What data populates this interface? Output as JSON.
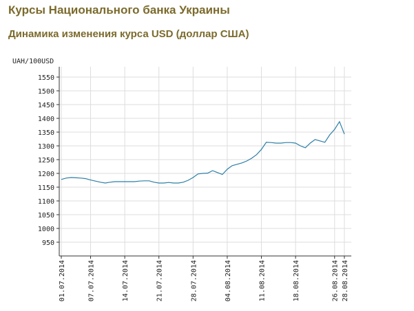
{
  "header": {
    "title": "Курсы Национального банка Украины",
    "subtitle": "Динамика изменения курса USD (доллар США)"
  },
  "chart_data": {
    "type": "line",
    "y_label": "UAH/100USD",
    "color": "#2b7ea6",
    "grid": true,
    "x": [
      "01.07.2014",
      "02.07.2014",
      "03.07.2014",
      "04.07.2014",
      "05.07.2014",
      "06.07.2014",
      "07.07.2014",
      "08.07.2014",
      "09.07.2014",
      "10.07.2014",
      "11.07.2014",
      "12.07.2014",
      "13.07.2014",
      "14.07.2014",
      "15.07.2014",
      "16.07.2014",
      "17.07.2014",
      "18.07.2014",
      "19.07.2014",
      "20.07.2014",
      "21.07.2014",
      "22.07.2014",
      "23.07.2014",
      "24.07.2014",
      "25.07.2014",
      "26.07.2014",
      "27.07.2014",
      "28.07.2014",
      "29.07.2014",
      "30.07.2014",
      "31.07.2014",
      "01.08.2014",
      "02.08.2014",
      "03.08.2014",
      "04.08.2014",
      "05.08.2014",
      "06.08.2014",
      "07.08.2014",
      "08.08.2014",
      "09.08.2014",
      "10.08.2014",
      "11.08.2014",
      "12.08.2014",
      "13.08.2014",
      "14.08.2014",
      "15.08.2014",
      "16.08.2014",
      "17.08.2014",
      "18.08.2014",
      "19.08.2014",
      "20.08.2014",
      "21.08.2014",
      "22.08.2014",
      "23.08.2014",
      "24.08.2014",
      "25.08.2014",
      "26.08.2014",
      "27.08.2014",
      "28.08.2014"
    ],
    "values": [
      1178,
      1183,
      1185,
      1184,
      1183,
      1181,
      1176,
      1172,
      1168,
      1165,
      1168,
      1170,
      1170,
      1170,
      1170,
      1170,
      1172,
      1173,
      1173,
      1168,
      1165,
      1165,
      1167,
      1165,
      1165,
      1168,
      1175,
      1185,
      1198,
      1200,
      1201,
      1210,
      1203,
      1196,
      1215,
      1228,
      1233,
      1238,
      1245,
      1255,
      1268,
      1287,
      1313,
      1312,
      1310,
      1310,
      1312,
      1312,
      1310,
      1300,
      1293,
      1310,
      1323,
      1318,
      1313,
      1340,
      1360,
      1388,
      1343
    ],
    "xlim": [
      "01.07.2014",
      "29.08.2014"
    ],
    "xticks": [
      "01.07.2014",
      "07.07.2014",
      "14.07.2014",
      "21.07.2014",
      "28.07.2014",
      "04.08.2014",
      "11.08.2014",
      "18.08.2014",
      "26.08.2014",
      "28.08.2014"
    ],
    "ylim": [
      900,
      1587.5
    ],
    "yticks": [
      950,
      1000,
      1050,
      1100,
      1150,
      1200,
      1250,
      1300,
      1350,
      1400,
      1450,
      1500,
      1550
    ]
  }
}
